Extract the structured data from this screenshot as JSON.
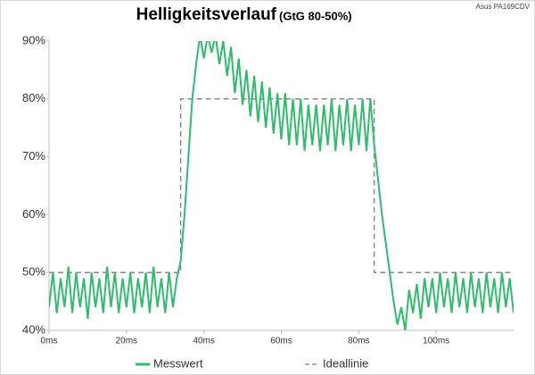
{
  "chart_data": {
    "type": "line",
    "title": "Helligkeitsverlauf",
    "subtitle": "(GtG 80-50%)",
    "annotation": "Asus PA169CDV",
    "series": [
      {
        "name": "Messwert",
        "color": "#2ebd6b",
        "dashed": false,
        "x": [
          0,
          1,
          2,
          3,
          4,
          5,
          6,
          7,
          8,
          9,
          10,
          11,
          12,
          13,
          14,
          15,
          16,
          17,
          18,
          19,
          20,
          21,
          22,
          23,
          24,
          25,
          26,
          27,
          28,
          29,
          30,
          31,
          32,
          33,
          34,
          35,
          36,
          37,
          38,
          39,
          40,
          41,
          42,
          43,
          44,
          45,
          46,
          47,
          48,
          49,
          50,
          51,
          52,
          53,
          54,
          55,
          56,
          57,
          58,
          59,
          60,
          61,
          62,
          63,
          64,
          65,
          66,
          67,
          68,
          69,
          70,
          71,
          72,
          73,
          74,
          75,
          76,
          77,
          78,
          79,
          80,
          81,
          82,
          83,
          84,
          85,
          86,
          87,
          88,
          89,
          90,
          91,
          92,
          93,
          94,
          95,
          96,
          97,
          98,
          99,
          100,
          101,
          102,
          103,
          104,
          105,
          106,
          107,
          108,
          109,
          110,
          111,
          112,
          113,
          114,
          115,
          116,
          117,
          118,
          119,
          120
        ],
        "values": [
          44,
          50,
          43,
          49,
          44,
          51,
          43,
          50,
          44,
          49,
          42,
          50,
          44,
          49,
          43,
          51,
          44,
          50,
          43,
          49,
          44,
          50,
          43,
          49,
          44,
          50,
          43,
          51,
          44,
          49,
          43,
          50,
          44,
          49,
          52,
          60,
          70,
          80,
          86,
          91,
          87,
          91,
          88,
          91,
          86,
          90,
          84,
          89,
          81,
          87,
          79,
          85,
          77,
          84,
          76,
          83,
          75,
          82,
          74,
          81,
          73,
          81,
          72,
          80,
          72,
          80,
          71,
          79,
          72,
          79,
          71,
          79,
          72,
          80,
          71,
          79,
          72,
          80,
          71,
          79,
          72,
          80,
          71,
          80,
          72,
          66,
          60,
          55,
          50,
          45,
          41,
          44,
          40,
          47,
          43,
          48,
          42,
          49,
          44,
          49,
          43,
          50,
          44,
          49,
          43,
          50,
          44,
          49,
          43,
          50,
          44,
          49,
          43,
          50,
          44,
          49,
          43,
          50,
          44,
          49,
          43
        ]
      },
      {
        "name": "Ideallinie",
        "color": "#808080",
        "dashed": true,
        "x": [
          0,
          34,
          34,
          84,
          84,
          120
        ],
        "values": [
          50,
          50,
          80,
          80,
          50,
          50
        ]
      }
    ],
    "xlim": [
      0,
      120
    ],
    "xticks": [
      {
        "value": 0,
        "label": "0ms"
      },
      {
        "value": 20,
        "label": "20ms"
      },
      {
        "value": 40,
        "label": "40ms"
      },
      {
        "value": 60,
        "label": "60ms"
      },
      {
        "value": 80,
        "label": "80ms"
      },
      {
        "value": 100,
        "label": "100ms"
      }
    ],
    "ylim": [
      40,
      90
    ],
    "yticks": [
      {
        "value": 40,
        "label": "40%"
      },
      {
        "value": 50,
        "label": "50%"
      },
      {
        "value": 60,
        "label": "60%"
      },
      {
        "value": 70,
        "label": "70%"
      },
      {
        "value": 80,
        "label": "80%"
      },
      {
        "value": 90,
        "label": "90%"
      }
    ]
  }
}
